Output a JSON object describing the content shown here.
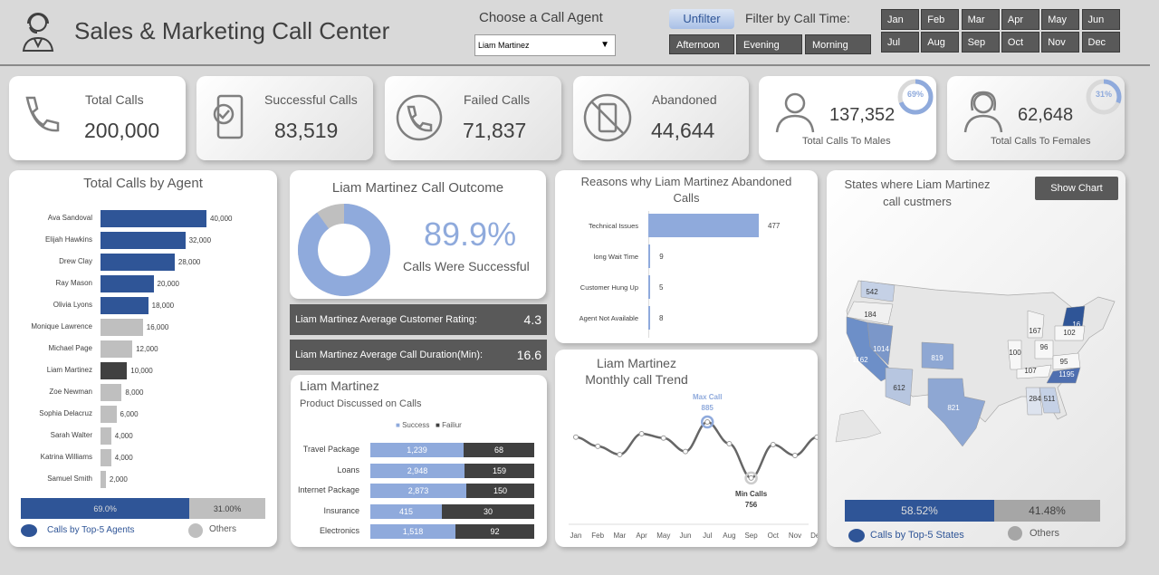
{
  "header": {
    "title": "Sales & Marketing Call Center",
    "agent_label": "Choose a Call Agent",
    "agent_selected": "Liam Martinez",
    "unfilter": "Unfilter",
    "filter_label": "Filter by Call Time:",
    "times": [
      "Afternoon",
      "Evening",
      "Morning"
    ],
    "months": [
      "Jan",
      "Feb",
      "Mar",
      "Apr",
      "May",
      "Jun",
      "Jul",
      "Aug",
      "Sep",
      "Oct",
      "Nov",
      "Dec"
    ]
  },
  "kpis": [
    {
      "label": "Total Calls",
      "value": "200,000",
      "icon": "phone-icon"
    },
    {
      "label": "Successful Calls",
      "value": "83,519",
      "icon": "phone-check-icon"
    },
    {
      "label": "Failed Calls",
      "value": "71,837",
      "icon": "phone-circle-icon"
    },
    {
      "label": "Abandoned",
      "value": "44,644",
      "icon": "phone-blocked-icon"
    },
    {
      "label": "Total Calls To Males",
      "value": "137,352",
      "pct": "69%",
      "pct_value": 69,
      "icon": "male-icon"
    },
    {
      "label": "Total Calls To Females",
      "value": "62,648",
      "pct": "31%",
      "pct_value": 31,
      "icon": "female-icon"
    }
  ],
  "agents": {
    "title": "Total Calls by Agent",
    "items": [
      {
        "name": "Ava Sandoval",
        "value": 40000,
        "label": "40,000",
        "group": "top"
      },
      {
        "name": "Elijah Hawkins",
        "value": 32000,
        "label": "32,000",
        "group": "top"
      },
      {
        "name": "Drew Clay",
        "value": 28000,
        "label": "28,000",
        "group": "top"
      },
      {
        "name": "Ray Mason",
        "value": 20000,
        "label": "20,000",
        "group": "top"
      },
      {
        "name": "Olivia Lyons",
        "value": 18000,
        "label": "18,000",
        "group": "top"
      },
      {
        "name": "Monique Lawrence",
        "value": 16000,
        "label": "16,000",
        "group": "other"
      },
      {
        "name": "Michael Page",
        "value": 12000,
        "label": "12,000",
        "group": "other"
      },
      {
        "name": "Liam Martinez",
        "value": 10000,
        "label": "10,000",
        "group": "selected"
      },
      {
        "name": "Zoe Newman",
        "value": 8000,
        "label": "8,000",
        "group": "other"
      },
      {
        "name": "Sophia Delacruz",
        "value": 6000,
        "label": "6,000",
        "group": "other"
      },
      {
        "name": "Sarah Walter",
        "value": 4000,
        "label": "4,000",
        "group": "other"
      },
      {
        "name": "Katrina Williams",
        "value": 4000,
        "label": "4,000",
        "group": "other"
      },
      {
        "name": "Samuel Smith",
        "value": 2000,
        "label": "2,000",
        "group": "other"
      }
    ],
    "top_pct": "69.0%",
    "top_value": 69.0,
    "other_pct": "31.00%",
    "legend_top": "Calls by Top-5 Agents",
    "legend_other": "Others"
  },
  "outcome": {
    "title": "Liam Martinez Call Outcome",
    "pct": "89.9%",
    "pct_value": 89.9,
    "caption": "Calls Were Successful"
  },
  "rating": {
    "label": "Liam Martinez Average Customer Rating:",
    "value": "4.3"
  },
  "duration": {
    "label": "Liam Martinez Average Call Duration(Min):",
    "value": "16.6"
  },
  "products": {
    "title": "Liam Martinez",
    "subtitle": "Product Discussed on Calls",
    "legend_success": "Success",
    "legend_fail": "Failiur",
    "items": [
      {
        "name": "Travel Package",
        "success": 1239,
        "s": "1,239",
        "fail": 68,
        "f": "68"
      },
      {
        "name": "Loans",
        "success": 2948,
        "s": "2,948",
        "fail": 159,
        "f": "159"
      },
      {
        "name": "Internet Package",
        "success": 2873,
        "s": "2,873",
        "fail": 150,
        "f": "150"
      },
      {
        "name": "Insurance",
        "success": 415,
        "s": "415",
        "fail": 30,
        "f": "30"
      },
      {
        "name": "Electronics",
        "success": 1518,
        "s": "1,518",
        "fail": 92,
        "f": "92"
      }
    ]
  },
  "reasons": {
    "title": "Reasons why Liam Martinez Abandoned Calls",
    "items": [
      {
        "name": "Technical Issues",
        "value": 477
      },
      {
        "name": "long Wait Time",
        "value": 9
      },
      {
        "name": "Customer Hung Up",
        "value": 5
      },
      {
        "name": "Agent Not Available",
        "value": 8
      }
    ]
  },
  "chart_data": {
    "type": "line",
    "title": "Liam Martinez Monthly call Trend",
    "categories": [
      "Jan",
      "Feb",
      "Mar",
      "Apr",
      "May",
      "Jun",
      "Jul",
      "Aug",
      "Sep",
      "Oct",
      "Nov",
      "Dec"
    ],
    "values": [
      850,
      829,
      810,
      858,
      848,
      817,
      885,
      835,
      756,
      833,
      808,
      850
    ],
    "max_label": "Max Call",
    "max_value": "885",
    "min_label": "Min Calls",
    "min_value": "756"
  },
  "map": {
    "title": "States where Liam Martinez call custmers",
    "button": "Show Chart",
    "states": [
      {
        "st": "WA",
        "v": "542"
      },
      {
        "st": "OR",
        "v": "184"
      },
      {
        "st": "CA",
        "v": "1162"
      },
      {
        "st": "NV",
        "v": "1014"
      },
      {
        "st": "AZ",
        "v": "612"
      },
      {
        "st": "CO",
        "v": "819"
      },
      {
        "st": "TX",
        "v": "821"
      },
      {
        "st": "NY",
        "v": "16.."
      },
      {
        "st": "NC",
        "v": "1195"
      },
      {
        "st": "GA",
        "v": "511"
      },
      {
        "st": "AL",
        "v": "284"
      },
      {
        "st": "MI",
        "v": "167"
      },
      {
        "st": "IL",
        "v": "100"
      },
      {
        "st": "OH",
        "v": "96"
      },
      {
        "st": "PA",
        "v": "102"
      },
      {
        "st": "KY",
        "v": "107"
      },
      {
        "st": "VA",
        "v": "95"
      }
    ],
    "top_pct": "58.52%",
    "top_value": 58.52,
    "other_pct": "41.48%",
    "legend_top": "Calls by Top-5 States",
    "legend_other": "Others"
  },
  "colors": {
    "blue_dark": "#2f5597",
    "blue_light": "#8faadc",
    "grey": "#bfbfbf",
    "dark": "#404040",
    "panel_dark": "#595959"
  }
}
